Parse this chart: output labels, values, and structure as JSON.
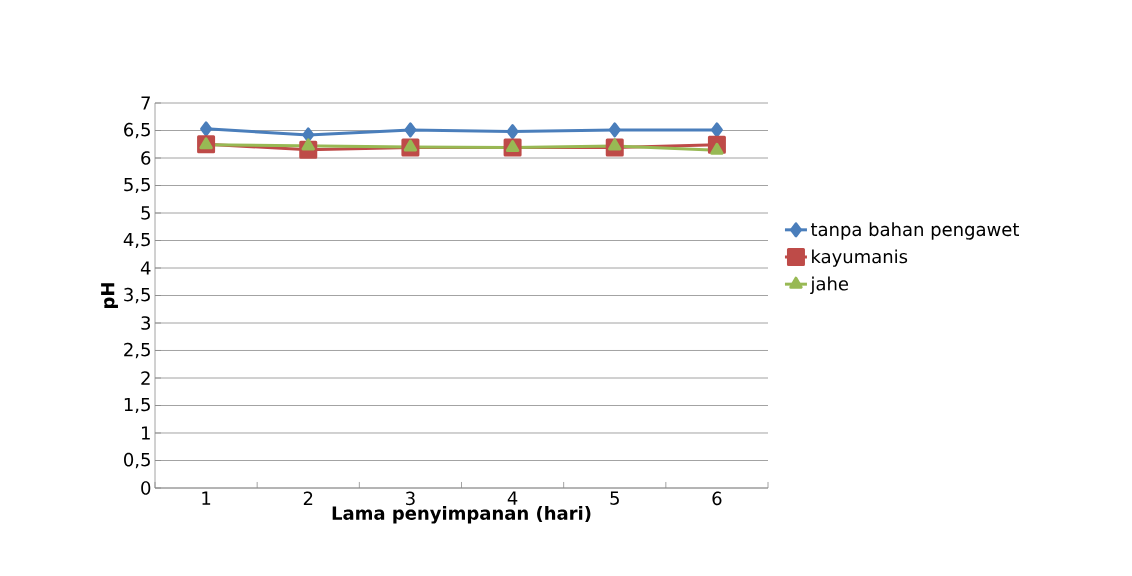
{
  "chart_data": {
    "type": "line",
    "xlabel": "Lama penyimpanan (hari)",
    "ylabel": "pH",
    "categories": [
      "1",
      "2",
      "3",
      "4",
      "5",
      "6"
    ],
    "series": [
      {
        "name": "tanpa bahan pengawet",
        "color": "#4a7ebb",
        "marker": "diamond",
        "values": [
          6.53,
          6.42,
          6.51,
          6.48,
          6.51,
          6.51
        ]
      },
      {
        "name": "kayumanis",
        "color": "#be4b48",
        "marker": "square",
        "values": [
          6.25,
          6.15,
          6.19,
          6.19,
          6.19,
          6.24
        ]
      },
      {
        "name": "jahe",
        "color": "#98b954",
        "marker": "triangle",
        "values": [
          6.24,
          6.22,
          6.2,
          6.19,
          6.22,
          6.14
        ]
      }
    ],
    "ylim": [
      0,
      7
    ],
    "yticks": [
      0,
      {
        "value": 0.5,
        "label": "0,5"
      },
      1,
      {
        "value": 1.5,
        "label": "1,5"
      },
      2,
      {
        "value": 2.5,
        "label": "2,5"
      },
      3,
      {
        "value": 3.5,
        "label": "3,5"
      },
      4,
      {
        "value": 4.5,
        "label": "4,5"
      },
      5,
      {
        "value": 5.5,
        "label": "5,5"
      },
      6,
      {
        "value": 6.5,
        "label": "6,5"
      },
      7
    ],
    "grid": "y",
    "legend": "right"
  }
}
